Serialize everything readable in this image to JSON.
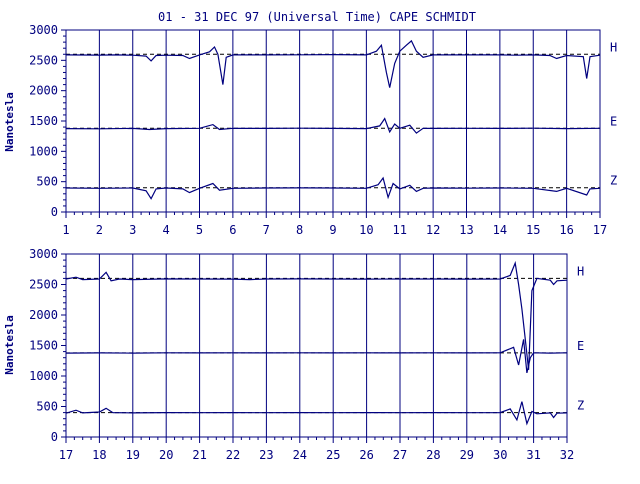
{
  "chart_data": {
    "type": "line",
    "title": "01 - 31 DEC 97 (Universal Time) CAPE SCHMIDT",
    "ylabel": "Nanotesla",
    "colors": {
      "trace": "#00007f",
      "baseline": "#000000",
      "axis": "#00007f"
    },
    "panels": [
      {
        "name": "top-panel",
        "xlim": [
          1,
          17
        ],
        "x_ticks": [
          "1",
          "2",
          "3",
          "4",
          "5",
          "6",
          "7",
          "8",
          "9",
          "10",
          "11",
          "12",
          "13",
          "14",
          "15",
          "16",
          "17"
        ],
        "ylim": [
          0,
          3000
        ],
        "y_ticks": [
          "0",
          "500",
          "1000",
          "1500",
          "2000",
          "2500",
          "3000"
        ],
        "series": [
          {
            "name": "H",
            "baseline": 2600,
            "points": [
              [
                1,
                2590
              ],
              [
                1.5,
                2588
              ],
              [
                2,
                2586
              ],
              [
                2.5,
                2590
              ],
              [
                3,
                2585
              ],
              [
                3.4,
                2570
              ],
              [
                3.55,
                2490
              ],
              [
                3.7,
                2580
              ],
              [
                4,
                2585
              ],
              [
                4.5,
                2580
              ],
              [
                4.7,
                2530
              ],
              [
                5,
                2590
              ],
              [
                5.3,
                2640
              ],
              [
                5.45,
                2720
              ],
              [
                5.55,
                2600
              ],
              [
                5.7,
                2100
              ],
              [
                5.8,
                2550
              ],
              [
                6,
                2590
              ],
              [
                7,
                2590
              ],
              [
                8,
                2592
              ],
              [
                9,
                2595
              ],
              [
                10,
                2590
              ],
              [
                10.3,
                2650
              ],
              [
                10.45,
                2750
              ],
              [
                10.6,
                2300
              ],
              [
                10.7,
                2050
              ],
              [
                10.85,
                2450
              ],
              [
                11,
                2650
              ],
              [
                11.2,
                2750
              ],
              [
                11.35,
                2820
              ],
              [
                11.5,
                2650
              ],
              [
                11.7,
                2550
              ],
              [
                12,
                2590
              ],
              [
                13,
                2590
              ],
              [
                14,
                2590
              ],
              [
                14.5,
                2585
              ],
              [
                15,
                2590
              ],
              [
                15.5,
                2580
              ],
              [
                15.7,
                2530
              ],
              [
                16,
                2580
              ],
              [
                16.5,
                2560
              ],
              [
                16.6,
                2200
              ],
              [
                16.7,
                2560
              ],
              [
                17,
                2585
              ]
            ]
          },
          {
            "name": "E",
            "baseline": 1380,
            "points": [
              [
                1,
                1375
              ],
              [
                2,
                1372
              ],
              [
                3,
                1378
              ],
              [
                3.5,
                1360
              ],
              [
                4,
                1375
              ],
              [
                5,
                1380
              ],
              [
                5.4,
                1440
              ],
              [
                5.6,
                1360
              ],
              [
                6,
                1380
              ],
              [
                7,
                1378
              ],
              [
                8,
                1382
              ],
              [
                9,
                1378
              ],
              [
                10,
                1375
              ],
              [
                10.4,
                1420
              ],
              [
                10.55,
                1540
              ],
              [
                10.7,
                1320
              ],
              [
                10.85,
                1450
              ],
              [
                11,
                1380
              ],
              [
                11.3,
                1430
              ],
              [
                11.5,
                1300
              ],
              [
                11.7,
                1380
              ],
              [
                12,
                1378
              ],
              [
                13,
                1380
              ],
              [
                14,
                1378
              ],
              [
                15,
                1382
              ],
              [
                16,
                1375
              ],
              [
                17,
                1380
              ]
            ]
          },
          {
            "name": "Z",
            "baseline": 400,
            "points": [
              [
                1,
                395
              ],
              [
                2,
                390
              ],
              [
                3,
                395
              ],
              [
                3.4,
                350
              ],
              [
                3.55,
                220
              ],
              [
                3.7,
                380
              ],
              [
                4,
                395
              ],
              [
                4.5,
                380
              ],
              [
                4.7,
                320
              ],
              [
                5,
                390
              ],
              [
                5.4,
                470
              ],
              [
                5.6,
                360
              ],
              [
                6,
                390
              ],
              [
                7,
                395
              ],
              [
                8,
                398
              ],
              [
                9,
                395
              ],
              [
                10,
                390
              ],
              [
                10.35,
                450
              ],
              [
                10.5,
                560
              ],
              [
                10.65,
                240
              ],
              [
                10.8,
                470
              ],
              [
                11,
                380
              ],
              [
                11.3,
                440
              ],
              [
                11.5,
                340
              ],
              [
                11.7,
                390
              ],
              [
                12,
                395
              ],
              [
                13,
                392
              ],
              [
                14,
                395
              ],
              [
                15,
                390
              ],
              [
                15.7,
                340
              ],
              [
                16,
                390
              ],
              [
                16.6,
                280
              ],
              [
                16.7,
                380
              ],
              [
                17,
                390
              ]
            ]
          }
        ]
      },
      {
        "name": "bottom-panel",
        "xlim": [
          17,
          32
        ],
        "x_ticks": [
          "17",
          "18",
          "19",
          "20",
          "21",
          "22",
          "23",
          "24",
          "25",
          "26",
          "27",
          "28",
          "29",
          "30",
          "31",
          "32"
        ],
        "ylim": [
          0,
          3000
        ],
        "y_ticks": [
          "0",
          "500",
          "1000",
          "1500",
          "2000",
          "2500",
          "3000"
        ],
        "series": [
          {
            "name": "H",
            "baseline": 2600,
            "points": [
              [
                17,
                2590
              ],
              [
                17.3,
                2620
              ],
              [
                17.5,
                2580
              ],
              [
                18,
                2590
              ],
              [
                18.2,
                2700
              ],
              [
                18.35,
                2560
              ],
              [
                18.6,
                2590
              ],
              [
                19,
                2580
              ],
              [
                20,
                2592
              ],
              [
                21,
                2590
              ],
              [
                22,
                2588
              ],
              [
                22.5,
                2580
              ],
              [
                23,
                2590
              ],
              [
                24,
                2592
              ],
              [
                25,
                2590
              ],
              [
                26,
                2588
              ],
              [
                27,
                2590
              ],
              [
                28,
                2590
              ],
              [
                29,
                2588
              ],
              [
                30,
                2590
              ],
              [
                30.3,
                2650
              ],
              [
                30.45,
                2850
              ],
              [
                30.55,
                2500
              ],
              [
                30.65,
                2100
              ],
              [
                30.75,
                1600
              ],
              [
                30.85,
                1100
              ],
              [
                30.95,
                2400
              ],
              [
                31.1,
                2600
              ],
              [
                31.5,
                2570
              ],
              [
                31.6,
                2500
              ],
              [
                31.7,
                2560
              ],
              [
                32,
                2570
              ]
            ]
          },
          {
            "name": "E",
            "baseline": 1380,
            "points": [
              [
                17,
                1375
              ],
              [
                18,
                1378
              ],
              [
                19,
                1375
              ],
              [
                20,
                1380
              ],
              [
                21,
                1378
              ],
              [
                22,
                1380
              ],
              [
                23,
                1378
              ],
              [
                24,
                1380
              ],
              [
                25,
                1378
              ],
              [
                26,
                1380
              ],
              [
                27,
                1378
              ],
              [
                28,
                1380
              ],
              [
                29,
                1378
              ],
              [
                30,
                1380
              ],
              [
                30.4,
                1470
              ],
              [
                30.55,
                1180
              ],
              [
                30.7,
                1600
              ],
              [
                30.8,
                1050
              ],
              [
                30.9,
                1300
              ],
              [
                31,
                1380
              ],
              [
                31.5,
                1375
              ],
              [
                32,
                1380
              ]
            ]
          },
          {
            "name": "Z",
            "baseline": 400,
            "points": [
              [
                17,
                390
              ],
              [
                17.3,
                440
              ],
              [
                17.5,
                395
              ],
              [
                18,
                410
              ],
              [
                18.2,
                470
              ],
              [
                18.4,
                400
              ],
              [
                19,
                395
              ],
              [
                20,
                400
              ],
              [
                21,
                398
              ],
              [
                22,
                400
              ],
              [
                23,
                398
              ],
              [
                24,
                400
              ],
              [
                25,
                398
              ],
              [
                26,
                400
              ],
              [
                27,
                398
              ],
              [
                28,
                400
              ],
              [
                29,
                398
              ],
              [
                30,
                400
              ],
              [
                30.3,
                460
              ],
              [
                30.5,
                280
              ],
              [
                30.65,
                580
              ],
              [
                30.8,
                220
              ],
              [
                30.95,
                420
              ],
              [
                31.1,
                380
              ],
              [
                31.5,
                395
              ],
              [
                31.6,
                320
              ],
              [
                31.7,
                390
              ],
              [
                32,
                395
              ]
            ]
          }
        ]
      }
    ]
  }
}
